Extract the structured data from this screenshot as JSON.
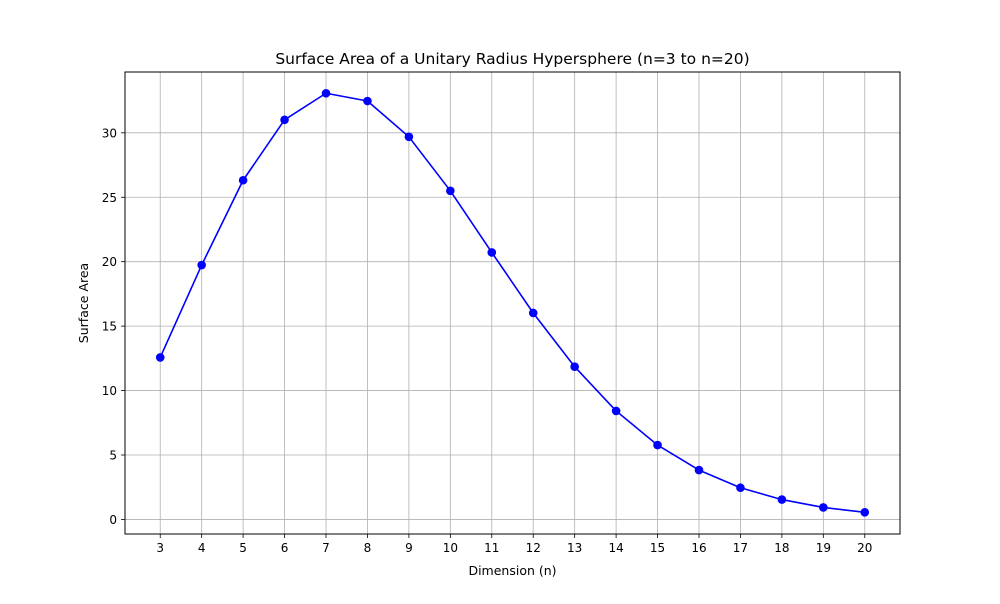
{
  "chart_data": {
    "type": "line",
    "title": "Surface Area of a Unitary Radius Hypersphere (n=3 to n=20)",
    "xlabel": "Dimension (n)",
    "ylabel": "Surface Area",
    "x": [
      3,
      4,
      5,
      6,
      7,
      8,
      9,
      10,
      11,
      12,
      13,
      14,
      15,
      16,
      17,
      18,
      19,
      20
    ],
    "series": [
      {
        "values": [
          12.57,
          19.74,
          26.32,
          31.01,
          33.07,
          32.47,
          29.69,
          25.5,
          20.72,
          16.02,
          11.85,
          8.42,
          5.77,
          3.83,
          2.46,
          1.54,
          0.93,
          0.55
        ],
        "color": "#0000ff",
        "marker": "circle"
      }
    ],
    "xticks": [
      3,
      4,
      5,
      6,
      7,
      8,
      9,
      10,
      11,
      12,
      13,
      14,
      15,
      16,
      17,
      18,
      19,
      20
    ],
    "yticks": [
      0,
      5,
      10,
      15,
      20,
      25,
      30
    ],
    "xlim": [
      2.15,
      20.85
    ],
    "ylim": [
      -1.13,
      34.72
    ],
    "grid": true,
    "grid_color": "#b0b0b0"
  }
}
